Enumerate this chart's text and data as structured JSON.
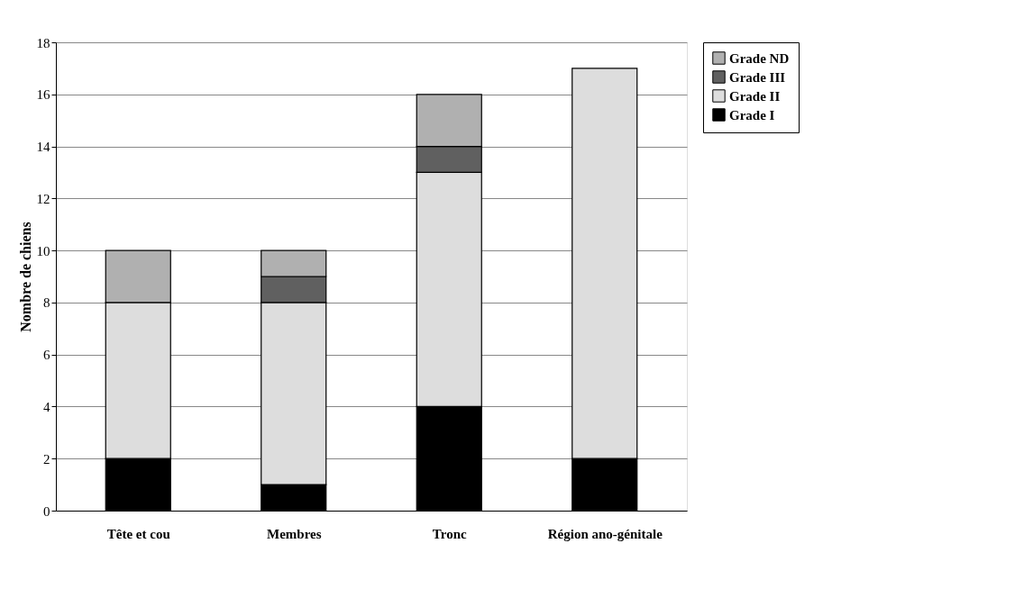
{
  "chart_data": {
    "type": "bar",
    "stacked": true,
    "ylabel": "Nombre de chiens",
    "categories": [
      "Tête et cou",
      "Membres",
      "Tronc",
      "Région ano-génitale"
    ],
    "series": [
      {
        "name": "Grade I",
        "color": "#000000",
        "values": [
          2,
          1,
          4,
          2
        ]
      },
      {
        "name": "Grade II",
        "color": "#dddddd",
        "values": [
          6,
          7,
          9,
          15
        ]
      },
      {
        "name": "Grade III",
        "color": "#606060",
        "values": [
          0,
          1,
          1,
          0
        ]
      },
      {
        "name": "Grade ND",
        "color": "#b0b0b0",
        "values": [
          2,
          1,
          2,
          0
        ]
      }
    ],
    "ylim": [
      0,
      18
    ],
    "yticks": [
      0,
      2,
      4,
      6,
      8,
      10,
      12,
      14,
      16,
      18
    ],
    "grid": "y",
    "legend": "right"
  }
}
